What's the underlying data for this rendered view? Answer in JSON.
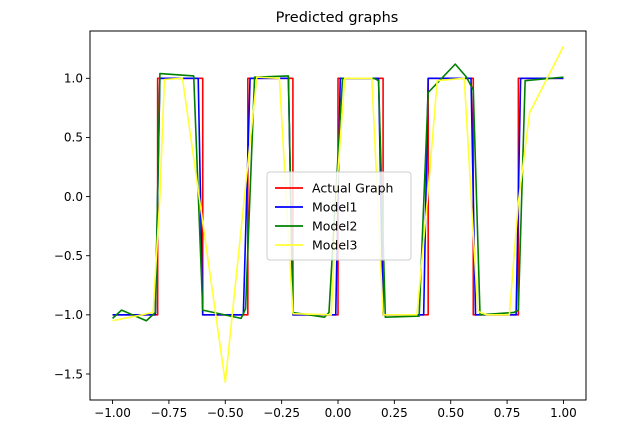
{
  "chart_data": {
    "type": "line",
    "title": "Predicted graphs",
    "xlabel": "",
    "ylabel": "",
    "xlim": [
      -1.1,
      1.1
    ],
    "ylim": [
      -1.72,
      1.4
    ],
    "xticks": [
      -1.0,
      -0.75,
      -0.5,
      -0.25,
      0.0,
      0.25,
      0.5,
      0.75,
      1.0
    ],
    "xtick_labels": [
      "−1.00",
      "−0.75",
      "−0.50",
      "−0.25",
      "0.00",
      "0.25",
      "0.50",
      "0.75",
      "1.00"
    ],
    "yticks": [
      -1.5,
      -1.0,
      -0.5,
      0.0,
      0.5,
      1.0
    ],
    "ytick_labels": [
      "−1.5",
      "−1.0",
      "−0.5",
      "0.0",
      "0.5",
      "1.0"
    ],
    "grid": false,
    "legend_position": "center",
    "series": [
      {
        "name": "Actual Graph",
        "color": "#ff0000",
        "x": [
          -1.0,
          -0.8,
          -0.8,
          -0.6,
          -0.6,
          -0.4,
          -0.4,
          -0.2,
          -0.2,
          0.0,
          0.0,
          0.2,
          0.2,
          0.4,
          0.4,
          0.6,
          0.6,
          0.8,
          0.8,
          1.0
        ],
        "y": [
          -1,
          -1,
          1,
          1,
          -1,
          -1,
          1,
          1,
          -1,
          -1,
          1,
          1,
          -1,
          -1,
          1,
          1,
          -1,
          -1,
          1,
          1
        ]
      },
      {
        "name": "Model1",
        "color": "#0000ff",
        "x": [
          -1.0,
          -0.81,
          -0.79,
          -0.62,
          -0.6,
          -0.42,
          -0.39,
          -0.22,
          -0.2,
          -0.01,
          0.01,
          0.18,
          0.2,
          0.38,
          0.4,
          0.59,
          0.61,
          0.79,
          0.81,
          1.0
        ],
        "y": [
          -1,
          -1,
          1,
          1,
          -1,
          -1,
          1,
          1,
          -1,
          -1,
          1,
          1,
          -1,
          -1,
          1,
          1,
          -1,
          -1,
          1,
          1
        ]
      },
      {
        "name": "Model2",
        "color": "#008000",
        "x": [
          -1.0,
          -0.96,
          -0.85,
          -0.81,
          -0.79,
          -0.64,
          -0.6,
          -0.43,
          -0.41,
          -0.37,
          -0.22,
          -0.2,
          -0.06,
          -0.04,
          0.02,
          0.16,
          0.18,
          0.21,
          0.36,
          0.4,
          0.44,
          0.52,
          0.57,
          0.6,
          0.63,
          0.78,
          0.8,
          0.83,
          1.0
        ],
        "y": [
          -1.03,
          -0.96,
          -1.05,
          -0.98,
          1.04,
          1.02,
          -0.96,
          -1.03,
          -0.95,
          1.01,
          1.02,
          -0.98,
          -1.02,
          -0.98,
          1.0,
          1.0,
          0.98,
          -1.02,
          -1.01,
          0.88,
          0.96,
          1.12,
          1.01,
          0.9,
          -1.0,
          -0.98,
          -0.96,
          0.98,
          1.01
        ]
      },
      {
        "name": "Model3",
        "color": "#ffff33",
        "x": [
          -1.0,
          -0.82,
          -0.79,
          -0.77,
          -0.69,
          -0.5,
          -0.36,
          -0.26,
          -0.2,
          -0.03,
          0.0,
          0.03,
          0.15,
          0.2,
          0.35,
          0.4,
          0.44,
          0.56,
          0.62,
          0.66,
          0.76,
          0.8,
          0.85,
          1.0
        ],
        "y": [
          -1.05,
          -0.98,
          0.0,
          0.99,
          1.0,
          -1.57,
          1.01,
          1.0,
          -0.99,
          -1.0,
          0.22,
          1.0,
          1.0,
          -1.0,
          -1.0,
          0.05,
          0.98,
          1.0,
          -0.97,
          -1.0,
          -1.0,
          -0.05,
          0.71,
          1.27
        ]
      }
    ]
  }
}
